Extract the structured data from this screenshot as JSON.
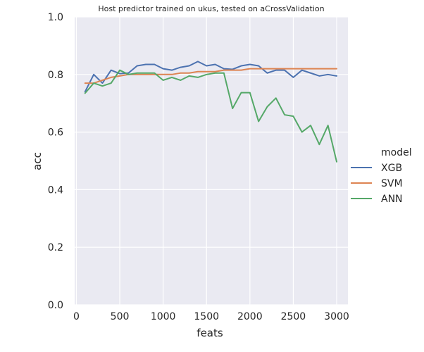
{
  "chart_data": {
    "type": "line",
    "title": "Host predictor trained on ukus, tested on aCrossValidation",
    "xlabel": "feats",
    "ylabel": "acc",
    "xlim": [
      -20,
      3130
    ],
    "ylim": [
      0.0,
      1.0
    ],
    "xticks": [
      0,
      500,
      1000,
      1500,
      2000,
      2500,
      3000
    ],
    "yticks": [
      0.0,
      0.2,
      0.4,
      0.6,
      0.8,
      1.0
    ],
    "xtick_labels": [
      "0",
      "500",
      "1000",
      "1500",
      "2000",
      "2500",
      "3000"
    ],
    "ytick_labels": [
      "0.0",
      "0.2",
      "0.4",
      "0.6",
      "0.8",
      "1.0"
    ],
    "grid": true,
    "legend_title": "model",
    "legend_position": "right",
    "x": [
      100,
      200,
      300,
      400,
      500,
      600,
      700,
      800,
      900,
      1000,
      1100,
      1200,
      1300,
      1400,
      1500,
      1600,
      1700,
      1800,
      1900,
      2000,
      2100,
      2200,
      2300,
      2400,
      2500,
      2600,
      2700,
      2800,
      2900,
      3000
    ],
    "series": [
      {
        "name": "XGB",
        "color": "#4c72b0",
        "values": [
          0.74,
          0.8,
          0.77,
          0.815,
          0.803,
          0.805,
          0.83,
          0.835,
          0.835,
          0.82,
          0.815,
          0.825,
          0.83,
          0.845,
          0.83,
          0.835,
          0.82,
          0.818,
          0.83,
          0.835,
          0.83,
          0.805,
          0.815,
          0.815,
          0.79,
          0.815,
          0.805,
          0.795,
          0.8,
          0.795
        ]
      },
      {
        "name": "SVM",
        "color": "#dd8452",
        "values": [
          0.77,
          0.77,
          0.78,
          0.79,
          0.795,
          0.8,
          0.8,
          0.8,
          0.8,
          0.8,
          0.8,
          0.805,
          0.805,
          0.81,
          0.81,
          0.81,
          0.815,
          0.815,
          0.815,
          0.82,
          0.82,
          0.82,
          0.82,
          0.82,
          0.82,
          0.82,
          0.82,
          0.82,
          0.82,
          0.82
        ]
      },
      {
        "name": "ANN",
        "color": "#55a868",
        "values": [
          0.735,
          0.77,
          0.76,
          0.77,
          0.815,
          0.8,
          0.805,
          0.805,
          0.805,
          0.78,
          0.79,
          0.78,
          0.795,
          0.79,
          0.8,
          0.805,
          0.805,
          0.682,
          0.737,
          0.737,
          0.637,
          0.688,
          0.718,
          0.66,
          0.655,
          0.6,
          0.623,
          0.557,
          0.623,
          0.497
        ]
      }
    ]
  }
}
